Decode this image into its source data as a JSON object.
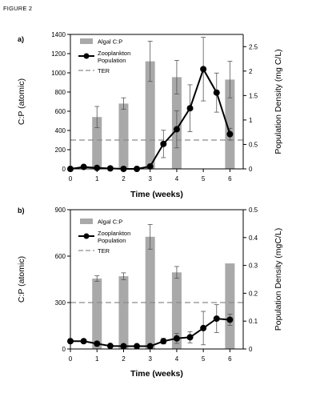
{
  "figure_label": "FIGURE 2",
  "colors": {
    "bar": "#a9a9a9",
    "line": "#000000",
    "ter": "#8c8c8c",
    "axis": "#000000"
  },
  "chart_data": [
    {
      "panel": "a)",
      "type": "bar+line",
      "xlabel": "Time (weeks)",
      "ylabel_left": "C:P (atomic)",
      "ylabel_right": "Population Density (mg C/L)",
      "xlim": [
        0,
        6.5
      ],
      "xticks": [
        0,
        1,
        2,
        3,
        4,
        5,
        6
      ],
      "ylim_left": [
        0,
        1400
      ],
      "yticks_left": [
        0,
        200,
        400,
        600,
        800,
        1000,
        1200,
        1400
      ],
      "ylim_right": [
        0,
        2.75
      ],
      "yticks_right": [
        0,
        0.5,
        1,
        1.5,
        2,
        2.5
      ],
      "right_tick_labels": [
        "0",
        "0.5",
        "1",
        "1.5",
        "2",
        "2.5"
      ],
      "ter": 300,
      "legend": {
        "bars": "Algal C:P",
        "line": "Zooplankton Population",
        "ter": "TER",
        "position": "top-left"
      },
      "bars": [
        {
          "x": 1,
          "value": 540,
          "err": 110
        },
        {
          "x": 2,
          "value": 680,
          "err": 60
        },
        {
          "x": 3,
          "value": 1120,
          "err": 210
        },
        {
          "x": 4,
          "value": 955,
          "err": 175
        },
        {
          "x": 6,
          "value": 930,
          "err": 190
        }
      ],
      "line": [
        {
          "x": 0,
          "y": 0.0,
          "err": 0
        },
        {
          "x": 0.5,
          "y": 0.04,
          "err": 0
        },
        {
          "x": 1,
          "y": 0.02,
          "err": 0
        },
        {
          "x": 1.5,
          "y": 0.01,
          "err": 0
        },
        {
          "x": 2,
          "y": 0.0,
          "err": 0
        },
        {
          "x": 2.5,
          "y": 0.0,
          "err": 0
        },
        {
          "x": 3,
          "y": 0.05,
          "err": 0
        },
        {
          "x": 3.5,
          "y": 0.51,
          "err": 0.28
        },
        {
          "x": 4,
          "y": 0.81,
          "err": 0.38
        },
        {
          "x": 4.5,
          "y": 1.24,
          "err": 0.48
        },
        {
          "x": 5,
          "y": 2.04,
          "err": 0.65
        },
        {
          "x": 5.5,
          "y": 1.56,
          "err": 0.4
        },
        {
          "x": 6,
          "y": 0.71,
          "err": 0.12
        }
      ]
    },
    {
      "panel": "b)",
      "type": "bar+line",
      "xlabel": "Time (weeks)",
      "ylabel_left": "C:P (atomic)",
      "ylabel_right": "Population Density (mgC/L)",
      "xlim": [
        0,
        6.5
      ],
      "xticks": [
        0,
        1,
        2,
        3,
        4,
        5,
        6
      ],
      "ylim_left": [
        0,
        900
      ],
      "yticks_left": [
        0,
        300,
        600,
        900
      ],
      "ylim_right": [
        0,
        0.5
      ],
      "yticks_right": [
        0,
        0.1,
        0.2,
        0.3,
        0.4,
        0.5
      ],
      "right_tick_labels": [
        "0",
        "0.1",
        "0.2",
        "0.3",
        "0.4",
        "0.5"
      ],
      "ter": 300,
      "legend": {
        "bars": "Algal C:P",
        "line": "Zooplankton Population",
        "ter": "TER",
        "position": "top-left"
      },
      "bars": [
        {
          "x": 1,
          "value": 455,
          "err": 18
        },
        {
          "x": 2,
          "value": 470,
          "err": 22
        },
        {
          "x": 3,
          "value": 725,
          "err": 80
        },
        {
          "x": 4,
          "value": 495,
          "err": 38
        },
        {
          "x": 6,
          "value": 553,
          "err": 0
        }
      ],
      "line": [
        {
          "x": 0,
          "y": 0.028,
          "err": 0
        },
        {
          "x": 0.5,
          "y": 0.028,
          "err": 0
        },
        {
          "x": 1,
          "y": 0.019,
          "err": 0
        },
        {
          "x": 1.5,
          "y": 0.011,
          "err": 0
        },
        {
          "x": 2,
          "y": 0.01,
          "err": 0
        },
        {
          "x": 2.5,
          "y": 0.01,
          "err": 0
        },
        {
          "x": 3,
          "y": 0.01,
          "err": 0
        },
        {
          "x": 3.5,
          "y": 0.028,
          "err": 0.01
        },
        {
          "x": 4,
          "y": 0.038,
          "err": 0.018
        },
        {
          "x": 4.5,
          "y": 0.042,
          "err": 0.02
        },
        {
          "x": 5,
          "y": 0.075,
          "err": 0.06
        },
        {
          "x": 5.5,
          "y": 0.109,
          "err": 0.05
        },
        {
          "x": 6,
          "y": 0.105,
          "err": 0.02
        }
      ]
    }
  ]
}
